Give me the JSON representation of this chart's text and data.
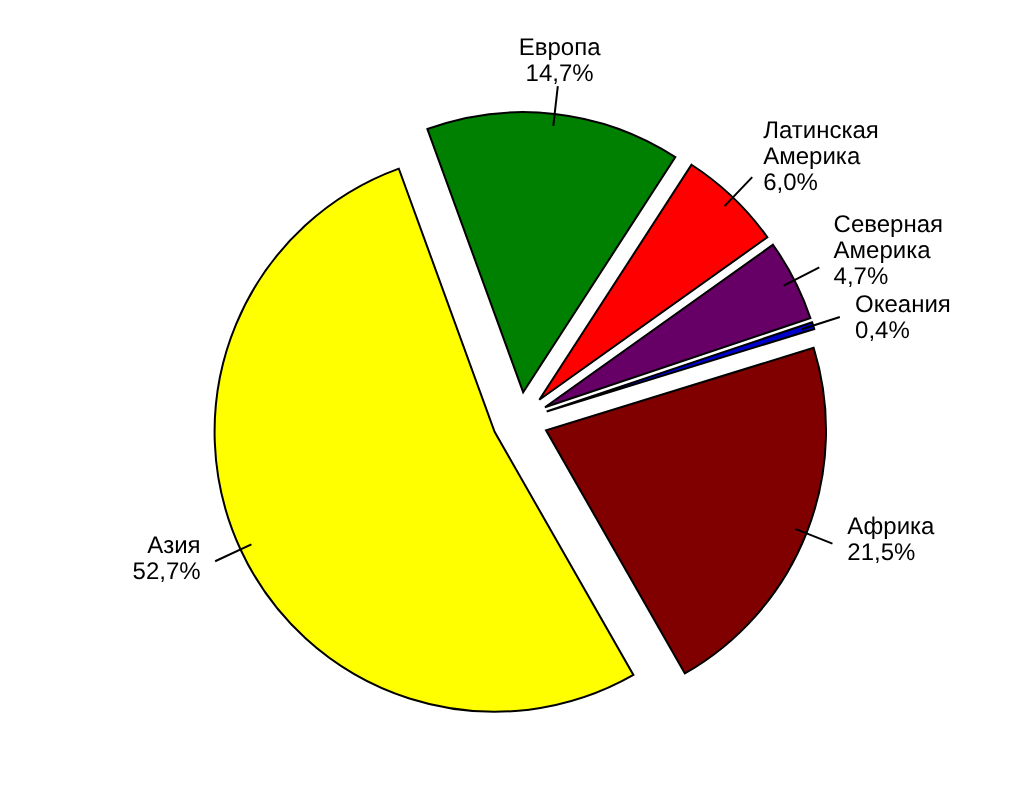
{
  "chart_data": {
    "type": "pie",
    "categories": [
      "Европа",
      "Латинская Америка",
      "Северная Америка",
      "Океания",
      "Африка",
      "Азия"
    ],
    "values": [
      14.7,
      6.0,
      4.7,
      0.4,
      21.5,
      52.7
    ],
    "value_labels": [
      "14,7%",
      "6,0%",
      "4,7%",
      "0,4%",
      "21,5%",
      "52,7%"
    ],
    "colors": [
      "#008000",
      "#ff0000",
      "#660066",
      "#0000cc",
      "#800000",
      "#ffff00"
    ]
  }
}
